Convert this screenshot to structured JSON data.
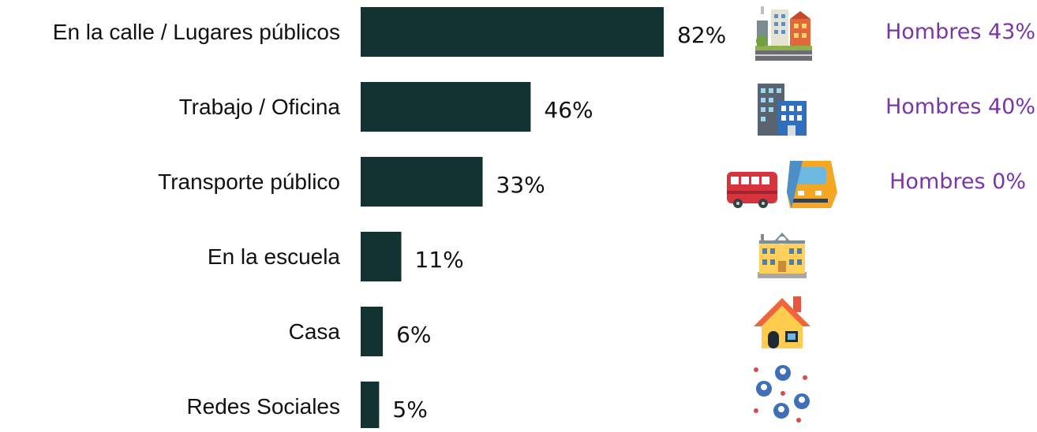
{
  "chart_data": {
    "type": "bar",
    "orientation": "horizontal",
    "categories": [
      "En la calle / Lugares públicos",
      "Trabajo / Oficina",
      "Transporte público",
      "En la escuela",
      "Casa",
      "Redes Sociales"
    ],
    "values": [
      82,
      46,
      33,
      11,
      6,
      5
    ],
    "value_labels": [
      "82%",
      "46%",
      "33%",
      "11%",
      "6%",
      "5%"
    ],
    "unit": "%",
    "xlim": [
      0,
      82
    ],
    "grid": false,
    "bar_color": "#133232",
    "annotations": [
      {
        "category": "En la calle / Lugares públicos",
        "text": "Hombres 43%"
      },
      {
        "category": "Trabajo / Oficina",
        "text": "Hombres 40%"
      },
      {
        "category": "Transporte público",
        "text": "Hombres 0%"
      }
    ],
    "annotation_color": "#7a35a8",
    "icons": [
      "city-icon",
      "office-building-icon",
      "bus-and-train-icon",
      "school-icon",
      "house-icon",
      "social-network-icon"
    ]
  }
}
